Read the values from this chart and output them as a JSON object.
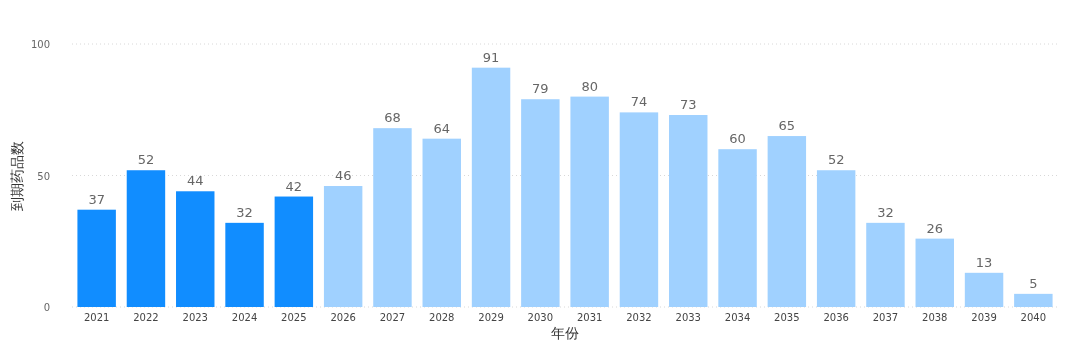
{
  "chart_data": {
    "type": "bar",
    "xlabel": "年份",
    "ylabel": "到期药品数",
    "categories": [
      "2021",
      "2022",
      "2023",
      "2024",
      "2025",
      "2026",
      "2027",
      "2028",
      "2029",
      "2030",
      "2031",
      "2032",
      "2033",
      "2034",
      "2035",
      "2036",
      "2037",
      "2038",
      "2039",
      "2040"
    ],
    "values": [
      37,
      52,
      44,
      32,
      42,
      46,
      68,
      64,
      91,
      79,
      80,
      74,
      73,
      60,
      65,
      52,
      32,
      26,
      13,
      5
    ],
    "colors": [
      "#118dff",
      "#118dff",
      "#118dff",
      "#118dff",
      "#118dff",
      "#a0d1ff",
      "#a0d1ff",
      "#a0d1ff",
      "#a0d1ff",
      "#a0d1ff",
      "#a0d1ff",
      "#a0d1ff",
      "#a0d1ff",
      "#a0d1ff",
      "#a0d1ff",
      "#a0d1ff",
      "#a0d1ff",
      "#a0d1ff",
      "#a0d1ff",
      "#a0d1ff"
    ],
    "ylim": [
      0,
      100
    ],
    "yticks": [
      0,
      50,
      100
    ],
    "grid": "y",
    "data_labels": true
  }
}
